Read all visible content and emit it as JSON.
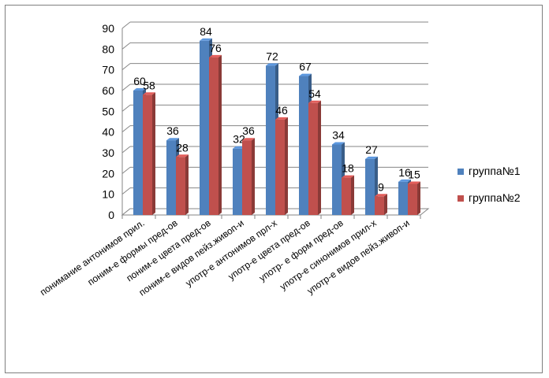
{
  "chart_data": {
    "type": "bar",
    "title": "",
    "xlabel": "",
    "ylabel": "",
    "ylim": [
      0,
      90
    ],
    "yticks": [
      0,
      10,
      20,
      30,
      40,
      50,
      60,
      70,
      80,
      90
    ],
    "grid": true,
    "legend_position": "right",
    "categories": [
      "понимание антонимов прил.",
      "поним-е формы пред-ов",
      "поним-е цвета пред-ов",
      "поним-е видов пейз.живоп-и",
      "употр-е антонимов прл-х",
      "употр-е цвета пред-ов",
      "употр- е форм пред-ов",
      "употр-е синонимов прил-х",
      "употр-е видов пейз.живоп-и"
    ],
    "series": [
      {
        "name": "группа№1",
        "color": "#4f81bd",
        "values": [
          60,
          36,
          84,
          32,
          72,
          67,
          34,
          27,
          16
        ]
      },
      {
        "name": "группа№2",
        "color": "#c0504d",
        "values": [
          58,
          28,
          76,
          36,
          46,
          54,
          18,
          9,
          15
        ]
      }
    ]
  }
}
